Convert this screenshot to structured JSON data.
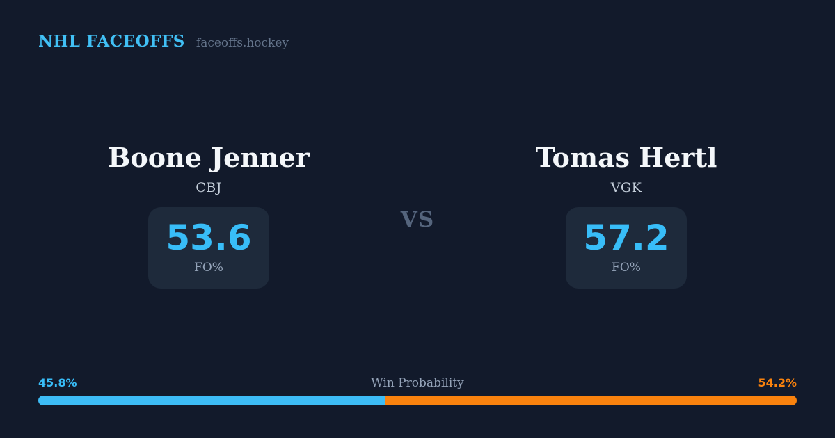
{
  "header": {
    "brand": "NHL FACEOFFS",
    "domain": "faceoffs.hockey"
  },
  "matchup": {
    "vs_label": "VS",
    "players": [
      {
        "name": "Boone Jenner",
        "team": "CBJ",
        "stat_value": "53.6",
        "stat_label": "FO%"
      },
      {
        "name": "Tomas Hertl",
        "team": "VGK",
        "stat_value": "57.2",
        "stat_label": "FO%"
      }
    ]
  },
  "win_probability": {
    "title": "Win Probability",
    "left_pct_label": "45.8%",
    "right_pct_label": "54.2%",
    "left_value": 45.8,
    "right_value": 54.2
  },
  "colors": {
    "background": "#121a2b",
    "stat_card_background": "#1e2a3b",
    "accent_blue": "#38bdf8",
    "accent_orange": "#f9820e",
    "brand_blue": "#41c0f5",
    "muted_text": "#94a3b8"
  }
}
